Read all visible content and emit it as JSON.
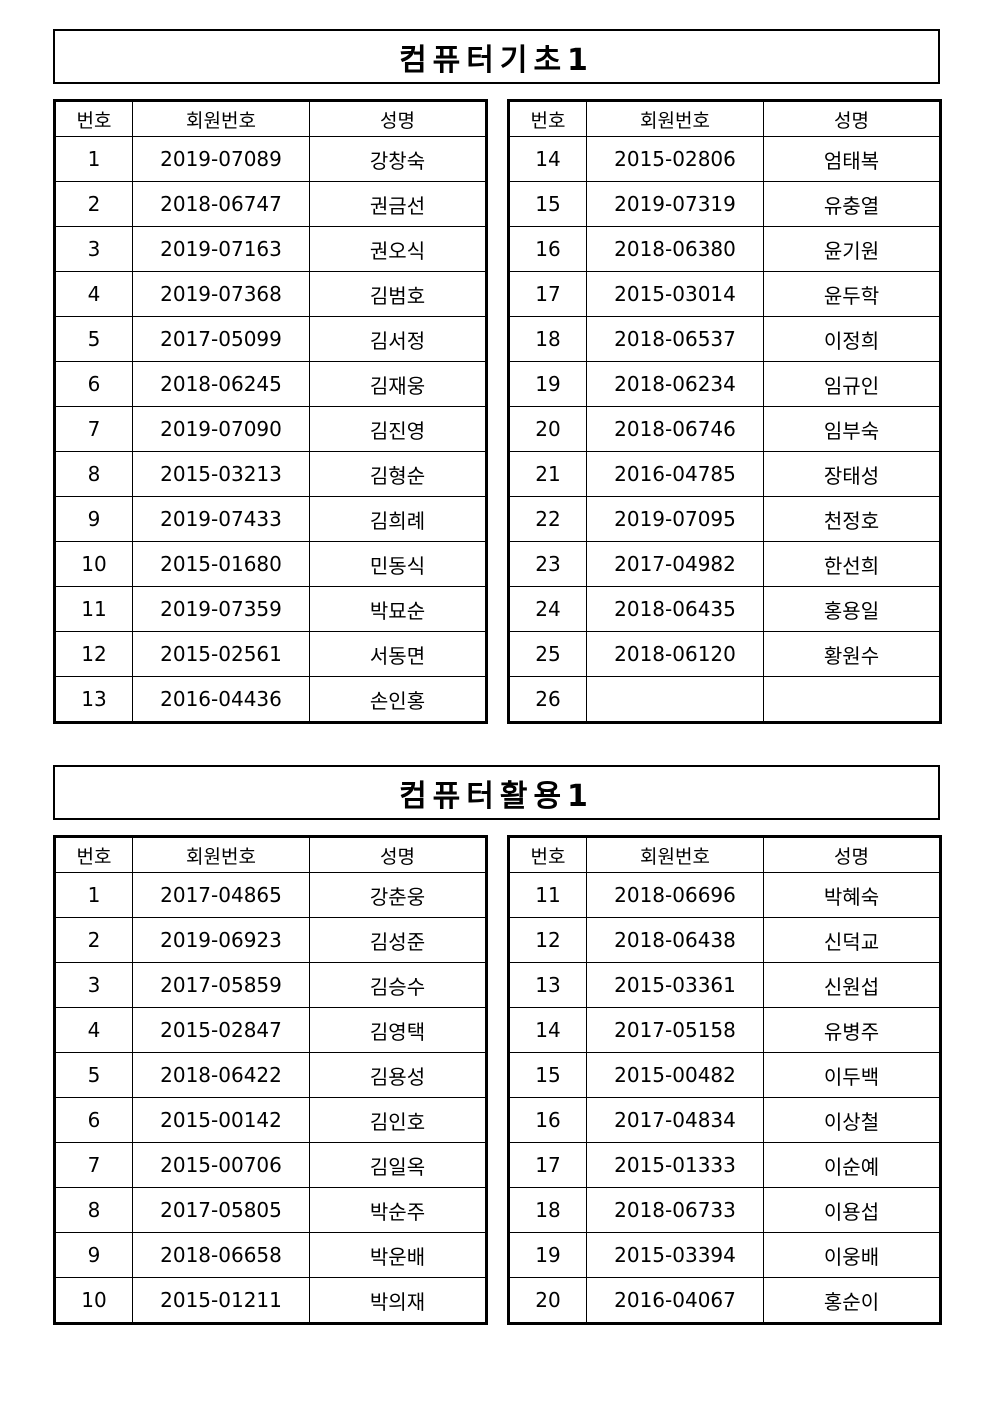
{
  "columns": [
    "번호",
    "회원번호",
    "성명"
  ],
  "sections": [
    {
      "title": "컴퓨터기초1",
      "left": [
        [
          "1",
          "2019-07089",
          "강창숙"
        ],
        [
          "2",
          "2018-06747",
          "권금선"
        ],
        [
          "3",
          "2019-07163",
          "권오식"
        ],
        [
          "4",
          "2019-07368",
          "김범호"
        ],
        [
          "5",
          "2017-05099",
          "김서정"
        ],
        [
          "6",
          "2018-06245",
          "김재웅"
        ],
        [
          "7",
          "2019-07090",
          "김진영"
        ],
        [
          "8",
          "2015-03213",
          "김형순"
        ],
        [
          "9",
          "2019-07433",
          "김희례"
        ],
        [
          "10",
          "2015-01680",
          "민동식"
        ],
        [
          "11",
          "2019-07359",
          "박묘순"
        ],
        [
          "12",
          "2015-02561",
          "서동면"
        ],
        [
          "13",
          "2016-04436",
          "손인홍"
        ]
      ],
      "right": [
        [
          "14",
          "2015-02806",
          "엄태복"
        ],
        [
          "15",
          "2019-07319",
          "유충열"
        ],
        [
          "16",
          "2018-06380",
          "윤기원"
        ],
        [
          "17",
          "2015-03014",
          "윤두학"
        ],
        [
          "18",
          "2018-06537",
          "이정희"
        ],
        [
          "19",
          "2018-06234",
          "임규인"
        ],
        [
          "20",
          "2018-06746",
          "임부숙"
        ],
        [
          "21",
          "2016-04785",
          "장태성"
        ],
        [
          "22",
          "2019-07095",
          "천정호"
        ],
        [
          "23",
          "2017-04982",
          "한선희"
        ],
        [
          "24",
          "2018-06435",
          "홍용일"
        ],
        [
          "25",
          "2018-06120",
          "황원수"
        ],
        [
          "26",
          "",
          ""
        ]
      ]
    },
    {
      "title": "컴퓨터활용1",
      "left": [
        [
          "1",
          "2017-04865",
          "강춘웅"
        ],
        [
          "2",
          "2019-06923",
          "김성준"
        ],
        [
          "3",
          "2017-05859",
          "김승수"
        ],
        [
          "4",
          "2015-02847",
          "김영택"
        ],
        [
          "5",
          "2018-06422",
          "김용성"
        ],
        [
          "6",
          "2015-00142",
          "김인호"
        ],
        [
          "7",
          "2015-00706",
          "김일옥"
        ],
        [
          "8",
          "2017-05805",
          "박순주"
        ],
        [
          "9",
          "2018-06658",
          "박운배"
        ],
        [
          "10",
          "2015-01211",
          "박의재"
        ]
      ],
      "right": [
        [
          "11",
          "2018-06696",
          "박혜숙"
        ],
        [
          "12",
          "2018-06438",
          "신덕교"
        ],
        [
          "13",
          "2015-03361",
          "신원섭"
        ],
        [
          "14",
          "2017-05158",
          "유병주"
        ],
        [
          "15",
          "2015-00482",
          "이두백"
        ],
        [
          "16",
          "2017-04834",
          "이상철"
        ],
        [
          "17",
          "2015-01333",
          "이순예"
        ],
        [
          "18",
          "2018-06733",
          "이용섭"
        ],
        [
          "19",
          "2015-03394",
          "이웅배"
        ],
        [
          "20",
          "2016-04067",
          "홍순이"
        ]
      ]
    }
  ]
}
